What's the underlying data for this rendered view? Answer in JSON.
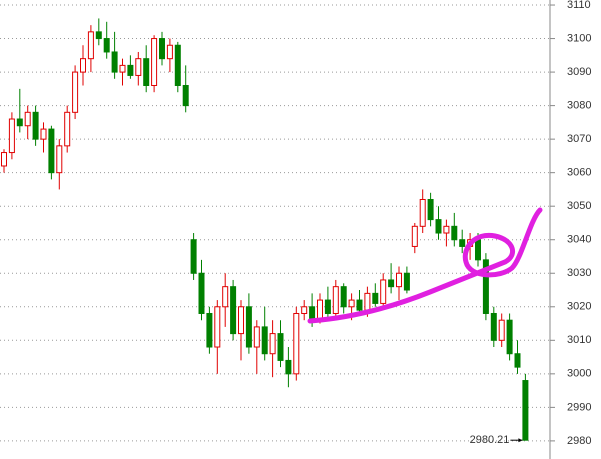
{
  "chart_data": {
    "type": "candlestick",
    "up_color": "#e00000",
    "down_color": "#008000",
    "ylim": [
      2974.6,
      3111.5
    ],
    "yticks": [
      2980,
      2990,
      3000,
      3010,
      3020,
      3030,
      3040,
      3050,
      3060,
      3070,
      3080,
      3090,
      3100,
      3110
    ],
    "grid": true,
    "ohlc": [
      [
        3062,
        3067,
        3060,
        3066
      ],
      [
        3066,
        3078,
        3064,
        3076
      ],
      [
        3076,
        3085,
        3072,
        3074
      ],
      [
        3074,
        3080,
        3070,
        3078
      ],
      [
        3078,
        3080,
        3068,
        3070
      ],
      [
        3070,
        3075,
        3066,
        3073
      ],
      [
        3073,
        3074,
        3058,
        3060
      ],
      [
        3060,
        3070,
        3055,
        3068
      ],
      [
        3068,
        3080,
        3066,
        3078
      ],
      [
        3078,
        3092,
        3076,
        3090
      ],
      [
        3090,
        3098,
        3086,
        3094
      ],
      [
        3094,
        3104,
        3090,
        3102
      ],
      [
        3102,
        3106,
        3098,
        3100
      ],
      [
        3100,
        3105,
        3094,
        3096
      ],
      [
        3096,
        3102,
        3088,
        3090
      ],
      [
        3090,
        3094,
        3086,
        3092
      ],
      [
        3092,
        3095,
        3088,
        3089
      ],
      [
        3089,
        3096,
        3086,
        3094
      ],
      [
        3094,
        3098,
        3084,
        3086
      ],
      [
        3086,
        3101,
        3084,
        3100
      ],
      [
        3100,
        3102,
        3092,
        3094
      ],
      [
        3094,
        3100,
        3090,
        3098
      ],
      [
        3098,
        3099,
        3084,
        3086
      ],
      [
        3086,
        3092,
        3078,
        3080
      ],
      [
        3040,
        3042,
        3028,
        3030
      ],
      [
        3030,
        3034,
        3016,
        3018
      ],
      [
        3018,
        3020,
        3006,
        3008
      ],
      [
        3008,
        3022,
        3000,
        3020
      ],
      [
        3020,
        3030,
        3014,
        3026
      ],
      [
        3026,
        3028,
        3010,
        3012
      ],
      [
        3012,
        3022,
        3004,
        3020
      ],
      [
        3020,
        3024,
        3006,
        3008
      ],
      [
        3008,
        3016,
        3000,
        3014
      ],
      [
        3014,
        3020,
        3004,
        3006
      ],
      [
        3006,
        3016,
        2999,
        3012
      ],
      [
        3012,
        3016,
        3002,
        3004
      ],
      [
        3004,
        3008,
        2996,
        3000
      ],
      [
        3000,
        3020,
        2998,
        3018
      ],
      [
        3018,
        3022,
        3016,
        3020
      ],
      [
        3020,
        3024,
        3014,
        3016
      ],
      [
        3016,
        3024,
        3015,
        3022
      ],
      [
        3022,
        3026,
        3016,
        3018
      ],
      [
        3018,
        3028,
        3017,
        3026
      ],
      [
        3026,
        3027,
        3018,
        3020
      ],
      [
        3020,
        3024,
        3016,
        3022
      ],
      [
        3022,
        3025,
        3018,
        3019
      ],
      [
        3019,
        3026,
        3017,
        3024
      ],
      [
        3024,
        3027,
        3020,
        3021
      ],
      [
        3021,
        3030,
        3020,
        3028
      ],
      [
        3028,
        3033,
        3024,
        3026
      ],
      [
        3026,
        3032,
        3022,
        3030
      ],
      [
        3030,
        3032,
        3024,
        3025
      ],
      [
        3038,
        3045,
        3036,
        3044
      ],
      [
        3044,
        3055,
        3042,
        3052
      ],
      [
        3052,
        3054,
        3044,
        3046
      ],
      [
        3046,
        3050,
        3040,
        3042
      ],
      [
        3042,
        3046,
        3038,
        3044
      ],
      [
        3044,
        3048,
        3038,
        3040
      ],
      [
        3040,
        3043,
        3036,
        3038
      ],
      [
        3038,
        3042,
        3034,
        3040
      ],
      [
        3040,
        3042,
        3032,
        3034
      ],
      [
        3034,
        3036,
        3016,
        3018
      ],
      [
        3018,
        3020,
        3008,
        3010
      ],
      [
        3010,
        3018,
        3008,
        3016
      ],
      [
        3016,
        3018,
        3004,
        3006
      ],
      [
        3006,
        3010,
        3000,
        3002
      ],
      [
        2998,
        3000,
        2980.21,
        2980.21
      ]
    ]
  }
}
